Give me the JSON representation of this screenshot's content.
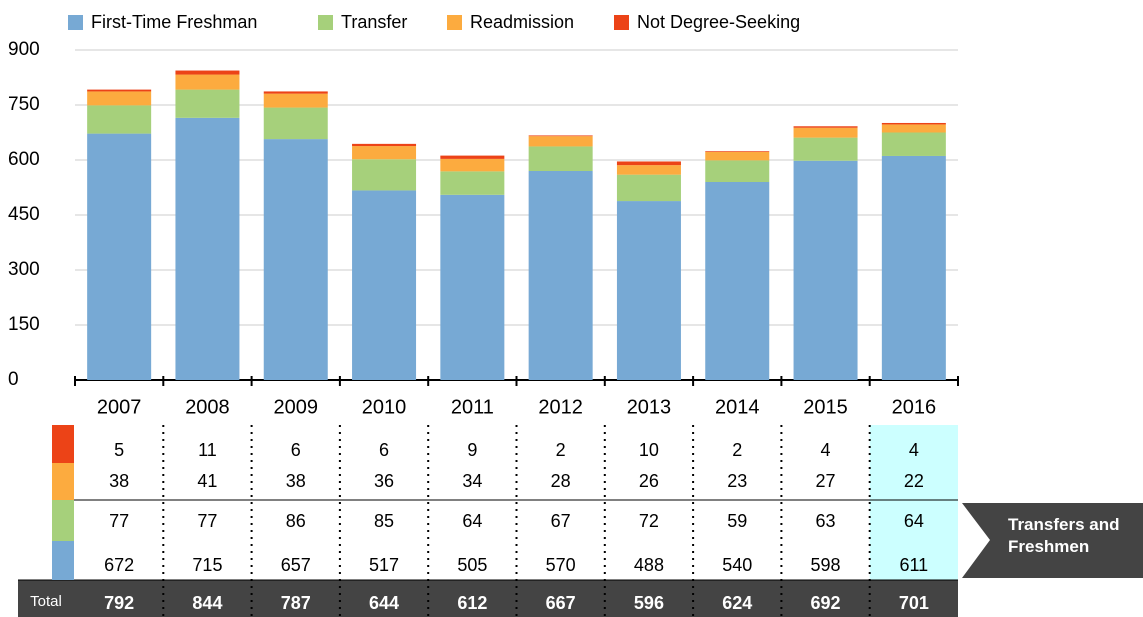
{
  "chart_data": {
    "type": "stacked-bar",
    "categories": [
      "2007",
      "2008",
      "2009",
      "2010",
      "2011",
      "2012",
      "2013",
      "2014",
      "2015",
      "2016"
    ],
    "series": [
      {
        "name": "First-Time Freshman",
        "color": "#77a9d4",
        "values": [
          672,
          715,
          657,
          517,
          505,
          570,
          488,
          540,
          598,
          611
        ]
      },
      {
        "name": "Transfer",
        "color": "#a6d07b",
        "values": [
          77,
          77,
          86,
          85,
          64,
          67,
          72,
          59,
          63,
          64
        ]
      },
      {
        "name": "Readmission",
        "color": "#fcab3f",
        "values": [
          38,
          41,
          38,
          36,
          34,
          28,
          26,
          23,
          27,
          22
        ]
      },
      {
        "name": "Not Degree-Seeking",
        "color": "#ec4317",
        "values": [
          5,
          11,
          6,
          6,
          9,
          2,
          10,
          2,
          4,
          4
        ]
      }
    ],
    "total_label": "Total",
    "totals": [
      792,
      844,
      787,
      644,
      612,
      667,
      596,
      624,
      692,
      701
    ],
    "callout": "Transfers and Freshmen",
    "ylim": [
      0,
      900
    ],
    "yticks": [
      0,
      150,
      300,
      450,
      600,
      750,
      900
    ],
    "grid": true
  }
}
